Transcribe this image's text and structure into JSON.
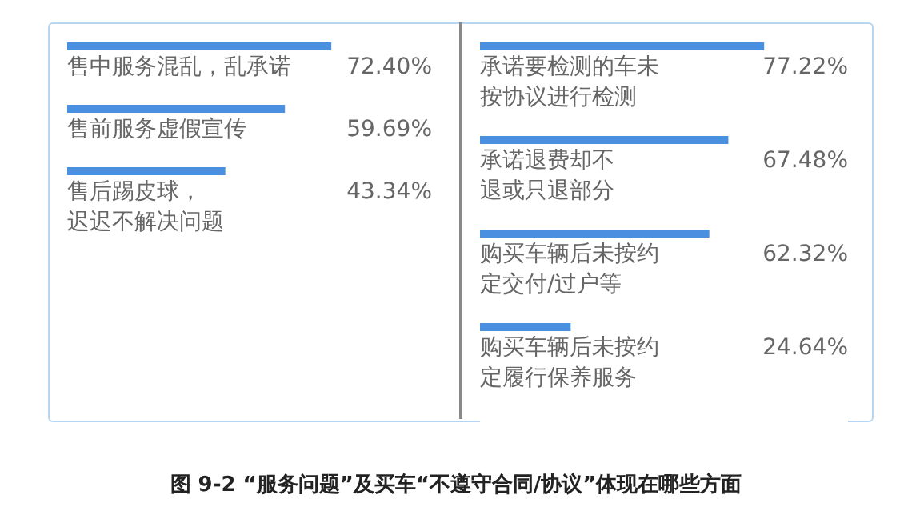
{
  "chart_data": [
    {
      "type": "bar",
      "orientation": "horizontal",
      "title": "图 9-2 “服务问题”及买车“不遵守合同/协议”体现在哪些方面",
      "categories": [
        "售中服务混乱，乱承诺",
        "售前服务虚假宣传",
        "售后踢皮球，迟迟不解决问题"
      ],
      "series": [
        {
          "color": "#4a8fe0",
          "values": [
            72.4,
            59.69,
            43.34
          ],
          "value_labels": [
            "72.40%",
            "59.69%",
            "43.34%"
          ]
        }
      ],
      "xlim": [
        0,
        100
      ]
    },
    {
      "type": "bar",
      "orientation": "horizontal",
      "categories": [
        "承诺要检测的车未按协议进行检测",
        "承诺退费却不退或只退部分",
        "购买车辆后未按约定交付/过户等",
        "购买车辆后未按约定履行保养服务"
      ],
      "series": [
        {
          "color": "#4a8fe0",
          "values": [
            77.22,
            67.48,
            62.32,
            24.64
          ],
          "value_labels": [
            "77.22%",
            "67.48%",
            "62.32%",
            "24.64%"
          ]
        }
      ],
      "xlim": [
        0,
        100
      ]
    }
  ]
}
